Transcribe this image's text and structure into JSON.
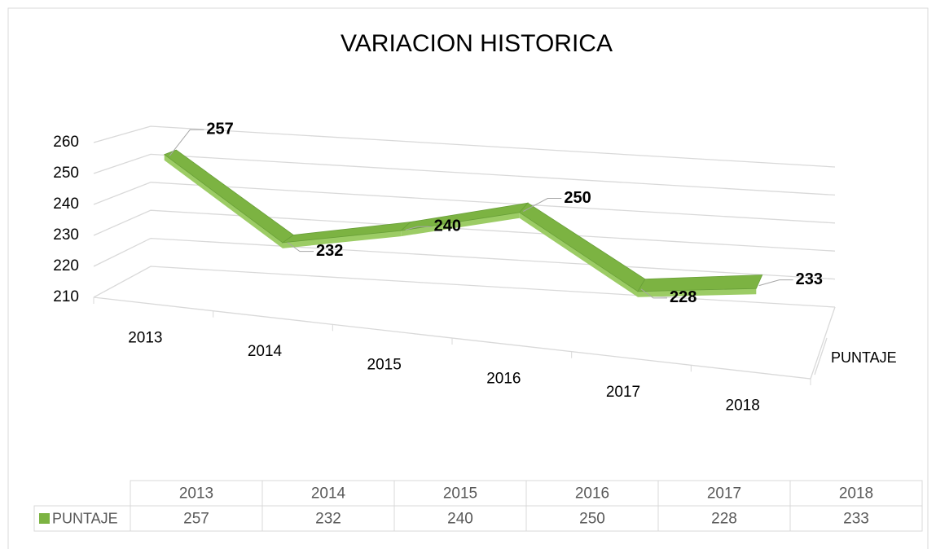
{
  "chart_data": {
    "type": "line3d",
    "title": "VARIACION HISTORICA",
    "categories": [
      "2013",
      "2014",
      "2015",
      "2016",
      "2017",
      "2018"
    ],
    "series": [
      {
        "name": "PUNTAJE",
        "color": "#7cb342",
        "values": [
          257,
          232,
          240,
          250,
          228,
          233
        ]
      }
    ],
    "ylim": [
      210,
      260
    ],
    "yticks": [
      210,
      220,
      230,
      240,
      250,
      260
    ],
    "grid": true,
    "data_table": true
  }
}
